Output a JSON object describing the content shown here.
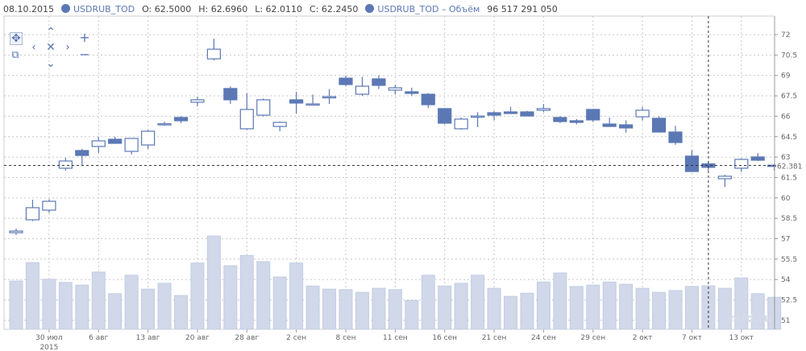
{
  "header": {
    "date": "08.10.2015",
    "series1": "USDRUB_TOD",
    "open": "O: 62.5000",
    "high": "H: 62.6960",
    "low": "L: 62.0110",
    "close": "C: 62.2450",
    "series2": "USDRUB_TOD – Объём",
    "volume": "96 517 291 050"
  },
  "watermark": "mfd.ru",
  "colors": {
    "accent": "#5b78b5",
    "volume": "#d0d8e9",
    "grid": "#c8c8c8"
  },
  "chart_data": {
    "type": "candlestick",
    "y_ticks": [
      "72",
      "70.5",
      "69",
      "67.5",
      "66",
      "64.5",
      "63",
      "61.5",
      "60",
      "58.5",
      "57",
      "55.5",
      "54",
      "52.5",
      "51"
    ],
    "ylim": [
      50.5,
      73
    ],
    "crosshair_value": "62.381",
    "crosshair_index": 42,
    "x_ticks": [
      {
        "i": 2,
        "label": "30 июл",
        "sub": "2015"
      },
      {
        "i": 5,
        "label": "6 авг"
      },
      {
        "i": 8,
        "label": "13 авг"
      },
      {
        "i": 11,
        "label": "20 авг"
      },
      {
        "i": 14,
        "label": "28 авг"
      },
      {
        "i": 17,
        "label": "2 сен"
      },
      {
        "i": 20,
        "label": "8 сен"
      },
      {
        "i": 23,
        "label": "11 сен"
      },
      {
        "i": 26,
        "label": "16 сен"
      },
      {
        "i": 29,
        "label": "21 сен"
      },
      {
        "i": 32,
        "label": "24 сен"
      },
      {
        "i": 35,
        "label": "29 сен"
      },
      {
        "i": 38,
        "label": "2 окт"
      },
      {
        "i": 41,
        "label": "7 окт"
      },
      {
        "i": 44,
        "label": "13 окт"
      }
    ],
    "ohlc": [
      [
        57.44,
        57.74,
        57.27,
        57.56
      ],
      [
        58.39,
        59.87,
        58.3,
        59.28
      ],
      [
        59.1,
        59.9,
        58.9,
        59.75
      ],
      [
        62.18,
        62.95,
        62.0,
        62.71
      ],
      [
        63.48,
        63.6,
        62.41,
        63.12
      ],
      [
        63.78,
        64.49,
        63.3,
        64.19
      ],
      [
        64.31,
        64.5,
        64.1,
        64.01
      ],
      [
        63.42,
        64.4,
        63.2,
        64.37
      ],
      [
        63.89,
        65.0,
        63.6,
        64.9
      ],
      [
        65.43,
        65.6,
        65.3,
        65.45
      ],
      [
        65.91,
        66.0,
        65.5,
        65.67
      ],
      [
        67.03,
        67.44,
        66.73,
        67.21
      ],
      [
        70.22,
        71.7,
        70.11,
        70.93
      ],
      [
        68.04,
        68.2,
        66.9,
        67.21
      ],
      [
        65.08,
        67.7,
        65.0,
        66.5
      ],
      [
        66.08,
        67.3,
        66.0,
        67.21
      ],
      [
        65.25,
        65.6,
        64.9,
        65.55
      ],
      [
        67.21,
        67.8,
        66.2,
        66.97
      ],
      [
        66.91,
        67.6,
        66.8,
        66.91
      ],
      [
        67.44,
        68.0,
        66.9,
        67.44
      ],
      [
        68.8,
        69.0,
        68.2,
        68.33
      ],
      [
        67.62,
        68.9,
        67.5,
        68.21
      ],
      [
        68.75,
        69.0,
        68.0,
        68.27
      ],
      [
        67.92,
        68.3,
        67.6,
        68.09
      ],
      [
        67.8,
        68.1,
        67.5,
        67.68
      ],
      [
        67.62,
        67.7,
        66.6,
        66.85
      ],
      [
        66.56,
        66.6,
        65.4,
        65.49
      ],
      [
        65.08,
        65.9,
        65.0,
        65.79
      ],
      [
        66.02,
        66.3,
        65.2,
        66.02
      ],
      [
        66.26,
        66.4,
        65.7,
        66.08
      ],
      [
        66.32,
        66.7,
        66.2,
        66.2
      ],
      [
        66.32,
        66.4,
        66.0,
        66.02
      ],
      [
        66.44,
        66.9,
        66.3,
        66.56
      ],
      [
        65.91,
        66.0,
        65.5,
        65.61
      ],
      [
        65.67,
        65.8,
        65.4,
        65.55
      ],
      [
        66.5,
        66.5,
        65.6,
        65.73
      ],
      [
        65.43,
        65.9,
        65.3,
        65.25
      ],
      [
        65.37,
        65.7,
        64.8,
        65.14
      ],
      [
        65.96,
        66.7,
        65.7,
        66.44
      ],
      [
        65.85,
        66.0,
        64.8,
        64.84
      ],
      [
        64.84,
        65.3,
        63.9,
        64.07
      ],
      [
        63.07,
        63.5,
        61.9,
        61.94
      ],
      [
        62.5,
        62.696,
        62.011,
        62.245
      ],
      [
        61.41,
        61.7,
        60.8,
        61.59
      ],
      [
        62.18,
        62.9,
        61.9,
        62.83
      ],
      [
        63.01,
        63.3,
        62.7,
        62.77
      ],
      [
        62.4,
        62.5,
        62.0,
        62.38
      ]
    ],
    "volume_bn": [
      107,
      148,
      111,
      104,
      98,
      127,
      79,
      120,
      89,
      102,
      75,
      147,
      207,
      141,
      164,
      150,
      116,
      147,
      96,
      89,
      88,
      82,
      91,
      88,
      64,
      120,
      96,
      102,
      120,
      91,
      73,
      80,
      105,
      125,
      95,
      98,
      105,
      100,
      91,
      82,
      86,
      95,
      96.5,
      91,
      114,
      79,
      71
    ]
  }
}
